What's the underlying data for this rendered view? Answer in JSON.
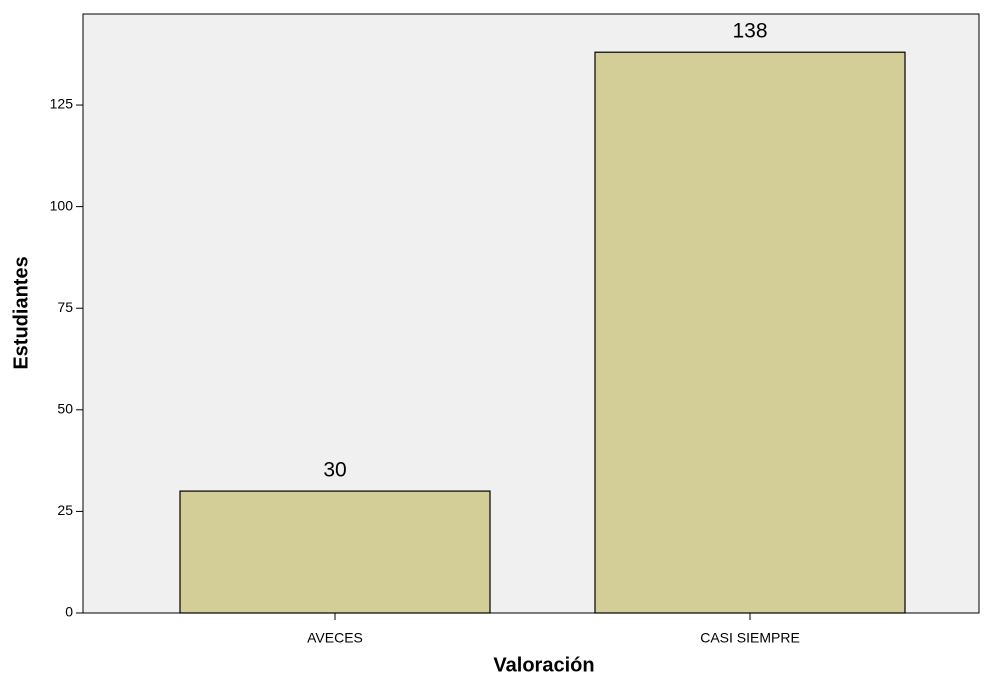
{
  "chart_data": {
    "type": "bar",
    "x_label": "Valoración",
    "y_label": "Estudiantes",
    "categories": [
      "AVECES",
      "CASI SIEMPRE"
    ],
    "values": [
      30,
      138
    ],
    "color": "#d3cd97",
    "ylim": [
      0,
      147.4
    ],
    "yticks": [
      0,
      25,
      50,
      75,
      100,
      125
    ],
    "grid": false
  }
}
